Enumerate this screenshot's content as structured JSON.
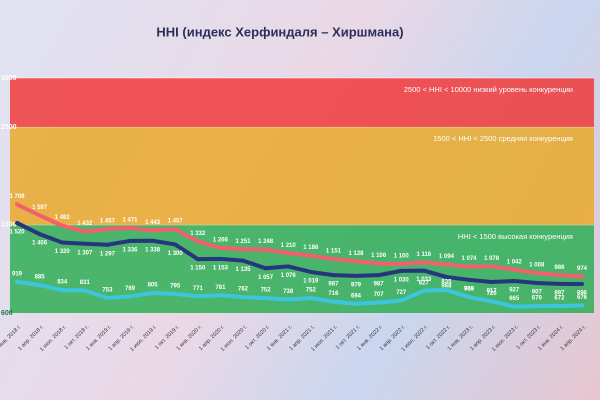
{
  "chart_data": {
    "type": "line",
    "title": "HHI (индекс Херфиндаля – Хиршмана)",
    "categories": [
      "1 янв. 2018 г.",
      "1 апр. 2018 г.",
      "1 июл. 2018 г.",
      "1 окт. 2018 г.",
      "1 янв. 2019 г.",
      "1 апр. 2019 г.",
      "1 июл. 2019 г.",
      "1 окт. 2019 г.",
      "1 янв. 2020 г.",
      "1 апр. 2020 г.",
      "1 июл. 2020 г.",
      "1 окт. 2020 г.",
      "1 янв. 2021 г.",
      "1 апр. 2021 г.",
      "1 июл. 2021 г.",
      "1 окт. 2021 г.",
      "1 янв. 2022 г.",
      "1 апр. 2022 г.",
      "1 июл. 2022 г.",
      "1 окт. 2022 г.",
      "1 янв. 2023 г.",
      "1 апр. 2023 г.",
      "1 июл. 2023 г.",
      "1 окт. 2023 г.",
      "1 янв. 2024 г.",
      "1 апр. 2024 г."
    ],
    "series": [
      {
        "color": "#f2606e",
        "values": [
          1709,
          1597,
          1492,
          1432,
          1457,
          1471,
          1443,
          1457,
          1332,
          1266,
          1251,
          1248,
          1210,
          1186,
          1151,
          1128,
          1106,
          1100,
          1116,
          1094,
          1074,
          1078,
          1042,
          1008,
          986,
          974
        ],
        "value_labels": [
          "1 709",
          "1 597",
          "1 492",
          "1 432",
          "1 457",
          "1 471",
          "1 443",
          "1 457",
          "1 332",
          "1 266",
          "1 251",
          "1 248",
          "1 210",
          "1 186",
          "1 151",
          "1 128",
          "1 106",
          "1 100",
          "1 116",
          "1 094",
          "1 074",
          "1 078",
          "1 042",
          "1 008",
          "986",
          "974"
        ]
      },
      {
        "color": "#27357f",
        "values": [
          1520,
          1406,
          1320,
          1307,
          1297,
          1336,
          1338,
          1300,
          1150,
          1153,
          1135,
          1057,
          1076,
          1019,
          987,
          979,
          987,
          1030,
          1033,
          968,
          939,
          917,
          927,
          907,
          897,
          896
        ],
        "value_labels": [
          "1 520",
          "1 406",
          "1 320",
          "1 307",
          "1 297",
          "1 336",
          "1 338",
          "1 300",
          "1 150",
          "1 153",
          "1 135",
          "1 057",
          "1 076",
          "1 019",
          "987",
          "979",
          "987",
          "1 030",
          "1 033",
          "968",
          "939",
          "917",
          "927",
          "907",
          "897",
          "896"
        ]
      },
      {
        "color": "#3cc6de",
        "values": [
          919,
          885,
          834,
          831,
          753,
          769,
          805,
          795,
          771,
          781,
          762,
          752,
          738,
          752,
          716,
          694,
          707,
          727,
          827,
          835,
          763,
          720,
          665,
          670,
          672,
          676
        ]
      }
    ],
    "ylim": [
      600,
      3000
    ],
    "yticks": [
      600,
      1500,
      2500,
      3000
    ],
    "bands": [
      {
        "label": "HHI < 1500 высокая конкуренция",
        "color": "#2fae55"
      },
      {
        "label": "1500 < HHI < 2500 средняя конкуренция",
        "color": "#e9a92a"
      },
      {
        "label": "2500 < HHI < 10000 низкий уровень конкуренции",
        "color": "#f03a3a"
      }
    ]
  }
}
